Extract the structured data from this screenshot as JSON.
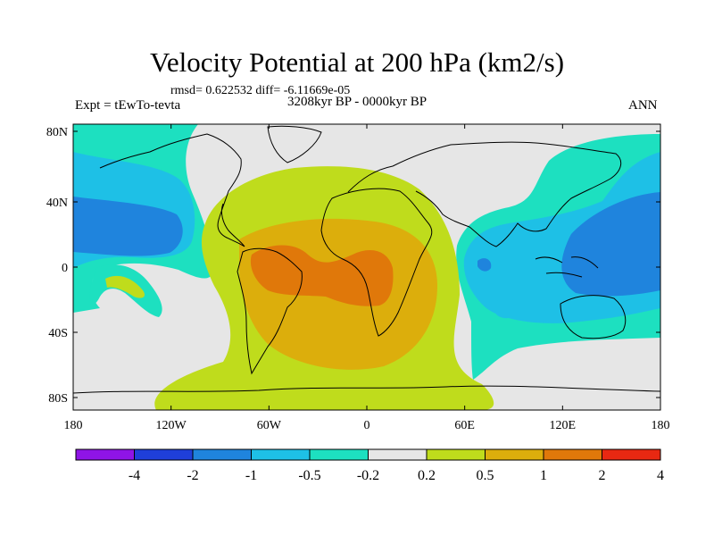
{
  "title": "Velocity Potential at 200 hPa (km2/s)",
  "stats_line": "rmsd= 0.622532 diff= -6.11669e-05",
  "experiment_label": "Expt = tEwTo-tevta",
  "period_label": "3208kyr BP - 0000kyr BP",
  "season_label": "ANN",
  "lat_ticks": [
    "80N",
    "40N",
    "0",
    "40S",
    "80S"
  ],
  "lon_ticks": [
    "180",
    "120W",
    "60W",
    "0",
    "60E",
    "120E",
    "180"
  ],
  "colorbar": {
    "labels": [
      "-4",
      "-2",
      "-1",
      "-0.5",
      "-0.2",
      "0.2",
      "0.5",
      "1",
      "2",
      "4"
    ],
    "colors": [
      "#8f14e6",
      "#1f3fd9",
      "#1f84dd",
      "#1ec0e6",
      "#1de0c0",
      "#e6e6e6",
      "#bfdc1c",
      "#dcae0c",
      "#e0780a",
      "#e82812"
    ]
  },
  "field_colors": {
    "land_outline": "#000000",
    "strong_negative": "#1f84dd",
    "moderate_negative": "#1ec0e6",
    "weak_negative": "#1de0c0",
    "near_zero": "#e6e6e6",
    "weak_positive": "#bfdc1c",
    "moderate_positive": "#dcae0c",
    "strong_positive": "#e0780a"
  }
}
